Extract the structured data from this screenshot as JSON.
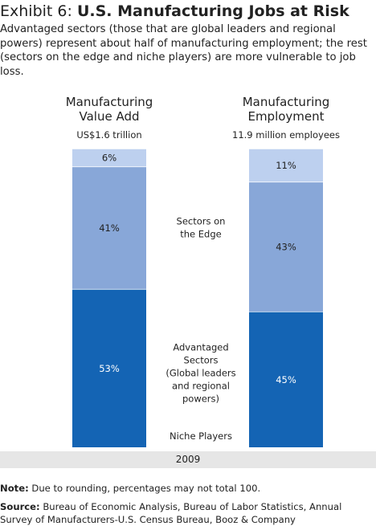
{
  "header": {
    "title_prefix": "Exhibit 6: ",
    "title_main": "U.S. Manufacturing Jobs at Risk",
    "subtitle": "Advantaged sectors (those that are global leaders and regional powers) represent about half of manufacturing employment; the rest (sectors on the edge and niche players) are more vulnerable to job loss."
  },
  "chart_data": {
    "type": "bar",
    "stacked": true,
    "categories": [
      "Manufacturing Value Add",
      "Manufacturing Employment"
    ],
    "category_lines": [
      [
        "Manufacturing",
        "Value Add"
      ],
      [
        "Manufacturing",
        "Employment"
      ]
    ],
    "category_totals": [
      "US$1.6 trillion",
      "11.9 million employees"
    ],
    "series": [
      {
        "name": "Advantaged Sectors (Global leaders and regional powers)",
        "label_lines": [
          "Advantaged",
          "Sectors",
          "(Global leaders",
          "and regional",
          "powers)"
        ],
        "values": [
          53,
          45
        ],
        "color": "#1464b4"
      },
      {
        "name": "Sectors on the Edge",
        "label_lines": [
          "Sectors on",
          "the Edge"
        ],
        "values": [
          41,
          43
        ],
        "color": "#88a7d8"
      },
      {
        "name": "Niche Players",
        "label_lines": [
          "Niche Players"
        ],
        "values": [
          6,
          11
        ],
        "color": "#bdd0ef"
      }
    ],
    "data_labels": [
      [
        "53%",
        "45%"
      ],
      [
        "41%",
        "43%"
      ],
      [
        "6%",
        "11%"
      ]
    ],
    "year": "2009",
    "units": "%"
  },
  "notes": {
    "note_label": "Note:",
    "note_text": " Due to rounding, percentages may not total 100.",
    "source_label": "Source:",
    "source_text": " Bureau of Economic Analysis, Bureau of Labor Statistics, Annual Survey of Manufacturers-U.S. Census Bureau, Booz & Company"
  }
}
